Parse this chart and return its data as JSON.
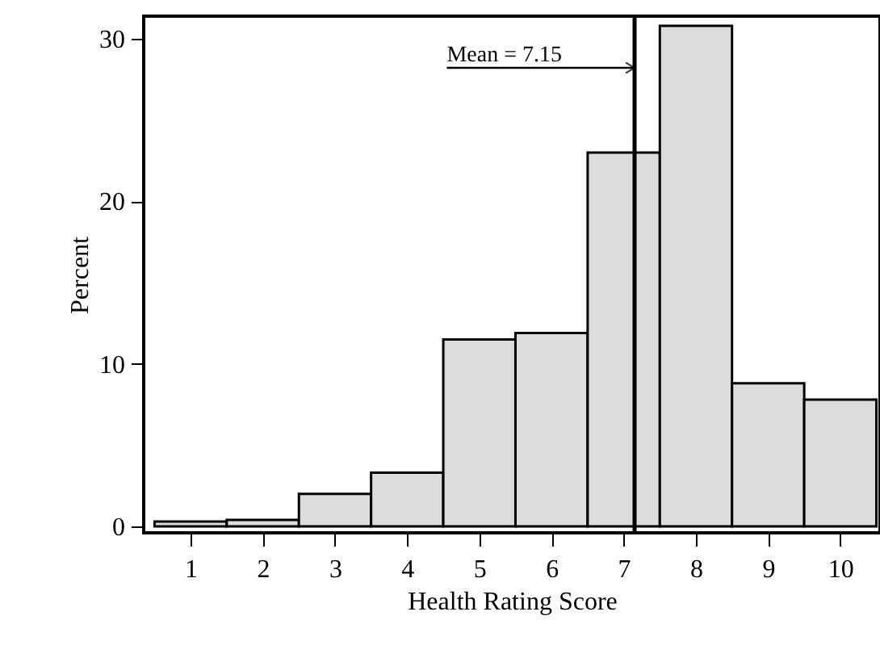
{
  "chart_data": {
    "type": "histogram",
    "xlabel": "Health Rating Score",
    "ylabel": "Percent",
    "bins": [
      0.5,
      1.5,
      2.5,
      3.5,
      4.5,
      5.5,
      6.5,
      7.5,
      8.5,
      9.5,
      10.5
    ],
    "values": [
      0.3,
      0.4,
      2.0,
      3.3,
      11.5,
      11.9,
      23.0,
      30.8,
      8.8,
      7.8
    ],
    "color": "#dcdcdc",
    "xlim": [
      0.35,
      10.55
    ],
    "xticks": [
      1,
      2,
      3,
      4,
      5,
      6,
      7,
      8,
      9,
      10
    ],
    "ylim": [
      -0.4,
      31.4
    ],
    "yticks": [
      0,
      10,
      20,
      30
    ],
    "grid": false,
    "ref_lines": [
      {
        "axis": "x",
        "value": 7.15,
        "label": "Mean = 7.15",
        "color": "#000000",
        "line_style": "solid"
      }
    ]
  }
}
